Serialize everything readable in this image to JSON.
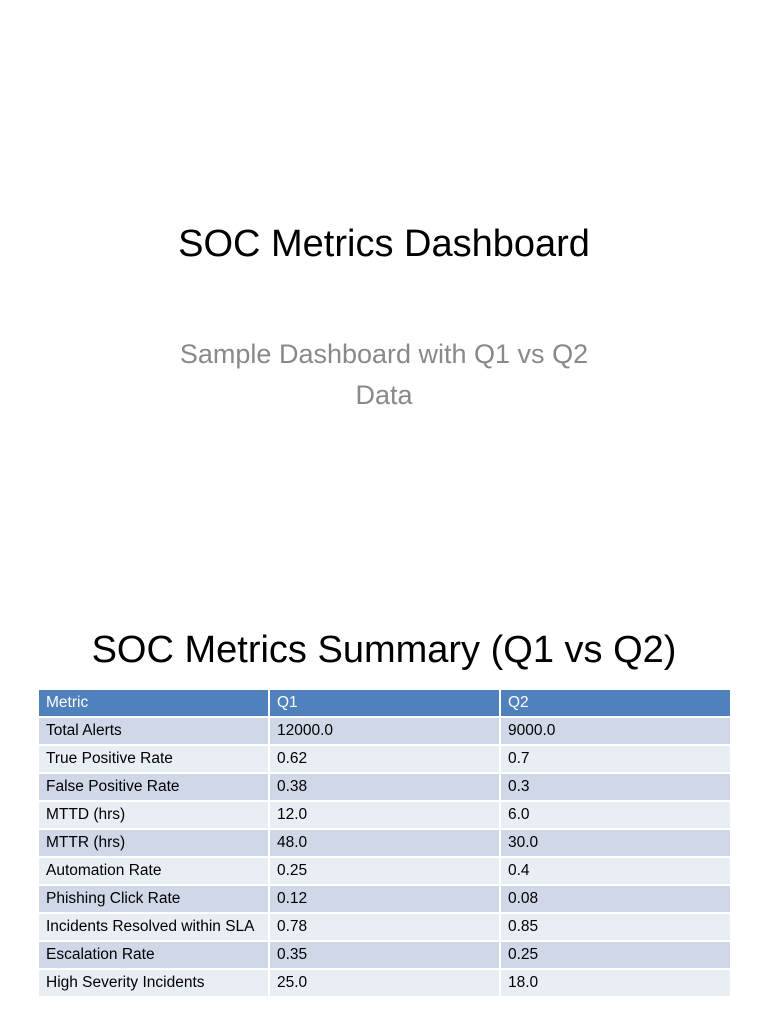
{
  "slide1": {
    "title": "SOC Metrics Dashboard",
    "subtitle_line1": "Sample Dashboard with Q1 vs Q2",
    "subtitle_line2": "Data"
  },
  "slide2": {
    "title": "SOC Metrics Summary (Q1 vs Q2)",
    "table": {
      "headers": [
        "Metric",
        "Q1",
        "Q2"
      ],
      "rows": [
        [
          "Total Alerts",
          "12000.0",
          "9000.0"
        ],
        [
          "True Positive Rate",
          "0.62",
          "0.7"
        ],
        [
          "False Positive Rate",
          "0.38",
          "0.3"
        ],
        [
          "MTTD (hrs)",
          "12.0",
          "6.0"
        ],
        [
          "MTTR (hrs)",
          "48.0",
          "30.0"
        ],
        [
          "Automation Rate",
          "0.25",
          "0.4"
        ],
        [
          "Phishing Click Rate",
          "0.12",
          "0.08"
        ],
        [
          "Incidents Resolved within SLA",
          "0.78",
          "0.85"
        ],
        [
          "Escalation Rate",
          "0.35",
          "0.25"
        ],
        [
          "High Severity Incidents",
          "25.0",
          "18.0"
        ]
      ]
    }
  },
  "colors": {
    "header_bg": "#4f81bd",
    "row_odd_bg": "#d0d8e8",
    "row_even_bg": "#e9edf4",
    "subtitle_text": "#898989"
  }
}
